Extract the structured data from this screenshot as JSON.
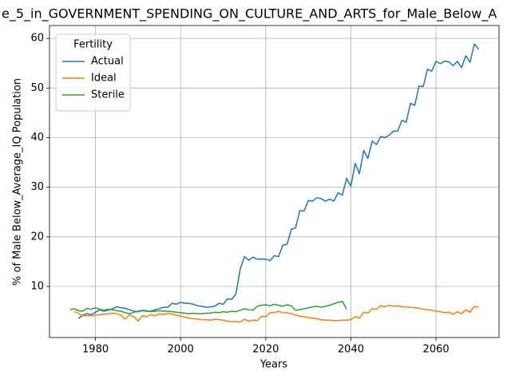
{
  "chart_data": {
    "type": "line",
    "title": "e_5_in_GOVERNMENT_SPENDING_ON_CULTURE_AND_ARTS_for_Male_Below_A",
    "xlabel": "Years",
    "ylabel": "% of Male Below_Average_IQ Population",
    "legend_title": "Fertility",
    "legend": "upper left",
    "grid": true,
    "xlim": [
      1969.2,
      2074.8
    ],
    "ylim": [
      -0.3,
      62.6
    ],
    "xticks": [
      1980,
      2000,
      2020,
      2040,
      2060
    ],
    "yticks": [
      10,
      20,
      30,
      40,
      50,
      60
    ],
    "x": [
      1974,
      1975,
      1976,
      1977,
      1978,
      1979,
      1980,
      1981,
      1982,
      1983,
      1984,
      1985,
      1986,
      1987,
      1988,
      1989,
      1990,
      1991,
      1992,
      1993,
      1994,
      1995,
      1996,
      1997,
      1998,
      1999,
      2000,
      2001,
      2002,
      2003,
      2004,
      2005,
      2006,
      2007,
      2008,
      2009,
      2010,
      2011,
      2012,
      2013,
      2014,
      2015,
      2016,
      2017,
      2018,
      2019,
      2020,
      2021,
      2022,
      2023,
      2024,
      2025,
      2026,
      2027,
      2028,
      2029,
      2030,
      2031,
      2032,
      2033,
      2034,
      2035,
      2036,
      2037,
      2038,
      2039,
      2040,
      2041,
      2042,
      2043,
      2044,
      2045,
      2046,
      2047,
      2048,
      2049,
      2050,
      2051,
      2052,
      2053,
      2054,
      2055,
      2056,
      2057,
      2058,
      2059,
      2060,
      2061,
      2062,
      2063,
      2064,
      2065,
      2066,
      2067,
      2068,
      2069,
      2070
    ],
    "series": [
      {
        "name": "Actual",
        "color": "#1f77b4",
        "values": [
          null,
          null,
          3.5,
          4.2,
          4.5,
          4.3,
          4.8,
          5.3,
          5.0,
          5.2,
          5.5,
          5.9,
          5.7,
          5.6,
          5.3,
          5.0,
          4.9,
          5.1,
          5.0,
          5.0,
          5.3,
          5.5,
          5.8,
          5.8,
          6.6,
          6.4,
          6.8,
          6.6,
          6.6,
          6.4,
          6.1,
          6.0,
          5.8,
          5.9,
          6.0,
          6.6,
          6.4,
          7.5,
          7.4,
          8.5,
          13.5,
          16.0,
          15.3,
          15.9,
          15.5,
          15.5,
          15.5,
          15.2,
          16.2,
          16.0,
          18.3,
          18.5,
          21.5,
          21.8,
          25.3,
          25.2,
          27.3,
          27.2,
          27.9,
          27.7,
          27.2,
          27.6,
          27.2,
          28.9,
          28.4,
          31.8,
          30.2,
          34.8,
          32.7,
          37.4,
          35.8,
          39.3,
          38.6,
          40.2,
          40.0,
          40.5,
          41.3,
          41.3,
          43.5,
          43.1,
          46.9,
          46.5,
          50.4,
          50.3,
          53.8,
          53.4,
          55.4,
          54.9,
          55.4,
          55.3,
          54.5,
          55.4,
          54.1,
          56.5,
          55.2,
          58.9,
          57.8
        ]
      },
      {
        "name": "Ideal",
        "color": "#ff7f0e",
        "values": [
          null,
          4.9,
          4.6,
          4.1,
          4.1,
          4.1,
          4.2,
          4.3,
          4.4,
          4.5,
          4.6,
          4.5,
          4.2,
          3.4,
          4.3,
          3.9,
          3.0,
          4.1,
          3.9,
          4.3,
          4.1,
          4.5,
          4.3,
          4.6,
          4.4,
          4.2,
          4.0,
          3.8,
          3.6,
          3.5,
          3.4,
          3.3,
          3.3,
          3.2,
          3.4,
          3.3,
          3.2,
          3.0,
          2.9,
          2.9,
          2.8,
          3.4,
          3.0,
          3.2,
          3.1,
          4.0,
          3.9,
          4.7,
          4.7,
          5.0,
          4.7,
          4.7,
          4.5,
          4.2,
          4.0,
          3.9,
          3.7,
          3.6,
          3.5,
          3.3,
          3.2,
          3.2,
          3.1,
          3.1,
          3.2,
          3.2,
          3.3,
          3.9,
          3.6,
          4.8,
          4.6,
          5.5,
          5.4,
          6.1,
          5.9,
          6.2,
          6.0,
          6.1,
          5.9,
          5.9,
          5.8,
          5.7,
          5.6,
          5.4,
          5.3,
          5.2,
          5.0,
          4.9,
          4.7,
          4.8,
          4.4,
          4.9,
          4.5,
          5.3,
          4.8,
          6.0,
          5.8
        ]
      },
      {
        "name": "Sterile",
        "color": "#2ca02c",
        "values": [
          5.3,
          5.5,
          5.1,
          5.0,
          5.6,
          5.4,
          5.7,
          5.4,
          5.2,
          5.4,
          5.3,
          5.1,
          5.0,
          4.7,
          4.5,
          4.8,
          5.0,
          5.2,
          5.1,
          4.9,
          5.0,
          5.1,
          5.0,
          5.0,
          4.9,
          4.8,
          4.7,
          4.6,
          4.5,
          4.6,
          4.5,
          4.5,
          4.6,
          4.6,
          4.8,
          4.7,
          4.9,
          4.8,
          5.0,
          4.9,
          5.2,
          5.5,
          5.3,
          5.2,
          6.0,
          6.2,
          6.3,
          6.1,
          6.4,
          6.2,
          6.0,
          6.3,
          6.1,
          5.2,
          5.3,
          5.5,
          5.7,
          5.9,
          6.0,
          5.8,
          6.0,
          6.2,
          6.5,
          6.8,
          7.0,
          5.4,
          null,
          null,
          null,
          null,
          null,
          null,
          null,
          null,
          null,
          null,
          null,
          null,
          null,
          null,
          null,
          null,
          null,
          null,
          null,
          null,
          null,
          null,
          null,
          null,
          null,
          null,
          null,
          null,
          null,
          null,
          null
        ]
      }
    ]
  }
}
